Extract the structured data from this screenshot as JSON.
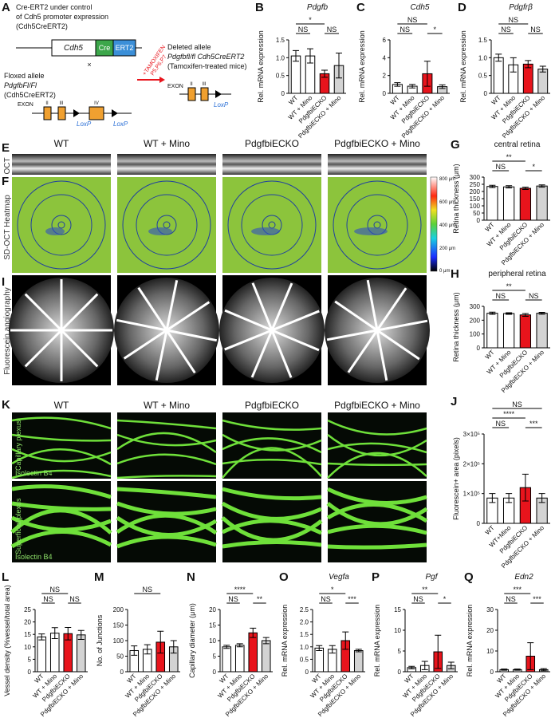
{
  "chart_data": [
    {
      "type": "bar",
      "panel": "B",
      "title": "Pdgfb",
      "y_label": "Rel. mRNA expression",
      "categories": [
        "WT",
        "WT + Mino",
        "PdgfbiECKO",
        "PdgfbiECKO + Mino"
      ],
      "values": [
        1.05,
        1.05,
        0.55,
        0.78
      ],
      "errors": [
        0.15,
        0.2,
        0.1,
        0.35
      ],
      "colors": [
        "#ffffff",
        "#ffffff",
        "#e8141c",
        "#d3d3d3"
      ],
      "ylim": [
        0,
        1.5
      ],
      "yticks": [
        0,
        0.5,
        {
          "value": 1,
          "label": "1.0"
        },
        1.5
      ],
      "comparisons": [
        {
          "label": "NS",
          "groups": [
            "WT",
            "WT + Mino"
          ]
        },
        {
          "label": "NS",
          "groups": [
            "PdgfbiECKO",
            "PdgfbiECKO + Mino"
          ]
        },
        {
          "label": "*",
          "groups": [
            "WT",
            "PdgfbiECKO"
          ]
        }
      ]
    },
    {
      "type": "bar",
      "panel": "C",
      "title": "Cdh5",
      "y_label": "Rel. mRNA expression",
      "categories": [
        "WT",
        "WT + Mino",
        "PdgfbiECKO",
        "PdgfbiECKO + Mino"
      ],
      "values": [
        1.0,
        0.8,
        2.2,
        0.75
      ],
      "errors": [
        0.2,
        0.2,
        1.4,
        0.2
      ],
      "colors": [
        "#ffffff",
        "#ffffff",
        "#e8141c",
        "#d3d3d3"
      ],
      "ylim": [
        0,
        6
      ],
      "yticks": [
        0,
        2,
        4,
        6
      ],
      "comparisons": [
        {
          "label": "NS",
          "groups": [
            "WT",
            "WT + Mino"
          ]
        },
        {
          "label": "*",
          "groups": [
            "PdgfbiECKO",
            "PdgfbiECKO + Mino"
          ]
        },
        {
          "label": "NS",
          "groups": [
            "WT",
            "PdgfbiECKO"
          ]
        }
      ]
    },
    {
      "type": "bar",
      "panel": "D",
      "title": "Pdgfrβ",
      "y_label": "Rel. mRNA expression",
      "categories": [
        "WT",
        "WT + Mino",
        "PdgfbiECKO",
        "PdgfbiECKO + Mino"
      ],
      "values": [
        1.0,
        0.8,
        0.82,
        0.68
      ],
      "errors": [
        0.1,
        0.2,
        0.1,
        0.08
      ],
      "colors": [
        "#ffffff",
        "#ffffff",
        "#e8141c",
        "#d3d3d3"
      ],
      "ylim": [
        0,
        1.5
      ],
      "yticks": [
        0,
        0.5,
        {
          "value": 1,
          "label": "1.0"
        },
        1.5
      ],
      "comparisons": [
        {
          "label": "NS",
          "groups": [
            "WT",
            "WT + Mino"
          ]
        },
        {
          "label": "NS",
          "groups": [
            "PdgfbiECKO",
            "PdgfbiECKO + Mino"
          ]
        },
        {
          "label": "NS",
          "groups": [
            "WT",
            "PdgfbiECKO"
          ]
        }
      ]
    },
    {
      "type": "bar",
      "panel": "G",
      "title": "central retina",
      "y_label": "Retina thickness (μm)",
      "categories": [
        "WT",
        "WT + Mino",
        "PdgfbiECKO",
        "PdgfbiECKO + Mino"
      ],
      "values": [
        235,
        232,
        222,
        238
      ],
      "errors": [
        8,
        8,
        8,
        8
      ],
      "colors": [
        "#ffffff",
        "#ffffff",
        "#e8141c",
        "#d3d3d3"
      ],
      "ylim": [
        0,
        300
      ],
      "yticks": [
        0,
        50,
        100,
        150,
        200,
        250,
        300
      ],
      "comparisons": [
        {
          "label": "NS",
          "groups": [
            "WT",
            "WT + Mino"
          ]
        },
        {
          "label": "*",
          "groups": [
            "PdgfbiECKO",
            "PdgfbiECKO + Mino"
          ]
        },
        {
          "label": "**",
          "groups": [
            "WT",
            "PdgfbiECKO"
          ]
        }
      ]
    },
    {
      "type": "bar",
      "panel": "H",
      "title": "peripheral retina",
      "y_label": "Retina thickness (μm)",
      "categories": [
        "WT",
        "WT + Mino",
        "PdgfbiECKO",
        "PdgfbiECKO + Mino"
      ],
      "values": [
        250,
        248,
        238,
        250
      ],
      "errors": [
        8,
        6,
        10,
        7
      ],
      "colors": [
        "#ffffff",
        "#ffffff",
        "#e8141c",
        "#d3d3d3"
      ],
      "ylim": [
        0,
        300
      ],
      "yticks": [
        0,
        100,
        200,
        300
      ],
      "comparisons": [
        {
          "label": "NS",
          "groups": [
            "WT",
            "WT + Mino"
          ]
        },
        {
          "label": "NS",
          "groups": [
            "PdgfbiECKO",
            "PdgfbiECKO + Mino"
          ]
        },
        {
          "label": "**",
          "groups": [
            "WT",
            "PdgfbiECKO"
          ]
        }
      ]
    },
    {
      "type": "bar",
      "panel": "J",
      "title": null,
      "y_label": "Fluorescein+ area (pixels)",
      "categories": [
        "WT",
        "WT+Mino",
        "PdgfbiECKO",
        "PdgfbiECKO + Mino"
      ],
      "values": [
        85000,
        85000,
        120000,
        85000
      ],
      "errors": [
        15000,
        15000,
        45000,
        15000
      ],
      "colors": [
        "#ffffff",
        "#ffffff",
        "#e8141c",
        "#d3d3d3"
      ],
      "ylim": [
        0,
        300000
      ],
      "yticks": [
        0,
        {
          "value": 100000,
          "label": "1×10⁵"
        },
        {
          "value": 200000,
          "label": "2×10⁵"
        },
        {
          "value": 300000,
          "label": "3×10⁵"
        }
      ],
      "comparisons": [
        {
          "label": "NS",
          "groups": [
            "WT",
            "WT+Mino"
          ]
        },
        {
          "label": "***",
          "groups": [
            "PdgfbiECKO",
            "PdgfbiECKO + Mino"
          ]
        },
        {
          "label": "****",
          "groups": [
            "WT",
            "PdgfbiECKO"
          ]
        },
        {
          "label": "NS",
          "groups": [
            "WT",
            "PdgfbiECKO + Mino"
          ]
        }
      ]
    },
    {
      "type": "bar",
      "panel": "L",
      "title": null,
      "y_label": "Vessel density (%vessel/total area)",
      "categories": [
        "WT",
        "WT + Mino",
        "PdgfbiECKO",
        "PdgfbiECKO + Mino"
      ],
      "values": [
        14,
        15.5,
        15.3,
        14.8
      ],
      "errors": [
        1.2,
        2.2,
        2.5,
        1.8
      ],
      "colors": [
        "#ffffff",
        "#ffffff",
        "#e8141c",
        "#d3d3d3"
      ],
      "ylim": [
        0,
        25
      ],
      "yticks": [
        0,
        5,
        10,
        15,
        20,
        25
      ],
      "comparisons": [
        {
          "label": "NS",
          "groups": [
            "WT",
            "WT + Mino"
          ]
        },
        {
          "label": "NS",
          "groups": [
            "PdgfbiECKO",
            "PdgfbiECKO + Mino"
          ]
        },
        {
          "label": "NS",
          "groups": [
            "WT",
            "PdgfbiECKO"
          ]
        }
      ]
    },
    {
      "type": "bar",
      "panel": "M",
      "title": null,
      "y_label": "No. of Junctions",
      "categories": [
        "WT",
        "WT + Mino",
        "PdgfbiECKO",
        "PdgfbiECKO + Mino"
      ],
      "values": [
        68,
        72,
        95,
        80
      ],
      "errors": [
        15,
        15,
        35,
        20
      ],
      "colors": [
        "#ffffff",
        "#ffffff",
        "#e8141c",
        "#d3d3d3"
      ],
      "ylim": [
        0,
        200
      ],
      "yticks": [
        0,
        50,
        100,
        150,
        200
      ],
      "comparisons": [
        {
          "label": "NS",
          "groups": [
            "WT",
            "PdgfbiECKO"
          ]
        }
      ]
    },
    {
      "type": "bar",
      "panel": "N",
      "title": null,
      "y_label": "Capillary diameter (μm)",
      "categories": [
        "WT",
        "WT + Mino",
        "PdgfbiECKO",
        "PdgfbiECKO + Mino"
      ],
      "values": [
        8,
        8.5,
        12.5,
        10
      ],
      "errors": [
        0.5,
        0.5,
        1.5,
        1.0
      ],
      "colors": [
        "#ffffff",
        "#ffffff",
        "#e8141c",
        "#d3d3d3"
      ],
      "ylim": [
        0,
        20
      ],
      "yticks": [
        0,
        5,
        10,
        15,
        20
      ],
      "comparisons": [
        {
          "label": "NS",
          "groups": [
            "WT",
            "WT + Mino"
          ]
        },
        {
          "label": "**",
          "groups": [
            "PdgfbiECKO",
            "PdgfbiECKO + Mino"
          ]
        },
        {
          "label": "****",
          "groups": [
            "WT",
            "PdgfbiECKO"
          ]
        }
      ]
    },
    {
      "type": "bar",
      "panel": "O",
      "title": "Vegfa",
      "y_label": "Rel. mRNA expression",
      "categories": [
        "WT",
        "WT + Mino",
        "PdgfbiECKO",
        "PdgfbiECKO + Mino"
      ],
      "values": [
        0.95,
        0.9,
        1.25,
        0.85
      ],
      "errors": [
        0.1,
        0.15,
        0.35,
        0.05
      ],
      "colors": [
        "#ffffff",
        "#ffffff",
        "#e8141c",
        "#d3d3d3"
      ],
      "ylim": [
        0,
        2.5
      ],
      "yticks": [
        0,
        0.5,
        {
          "value": 1,
          "label": "1.0"
        },
        1.5,
        {
          "value": 2,
          "label": "2.0"
        },
        2.5
      ],
      "comparisons": [
        {
          "label": "NS",
          "groups": [
            "WT",
            "WT + Mino"
          ]
        },
        {
          "label": "***",
          "groups": [
            "PdgfbiECKO",
            "PdgfbiECKO + Mino"
          ]
        },
        {
          "label": "*",
          "groups": [
            "WT",
            "PdgfbiECKO"
          ]
        }
      ]
    },
    {
      "type": "bar",
      "panel": "P",
      "title": "Pgf",
      "y_label": "Rel. mRNA expression",
      "categories": [
        "WT",
        "WT + Mino",
        "PdgfbiECKO",
        "PdgfbiECKO + Mino"
      ],
      "values": [
        1,
        1.5,
        4.8,
        1.5
      ],
      "errors": [
        0.3,
        1.0,
        4.0,
        0.8
      ],
      "colors": [
        "#ffffff",
        "#ffffff",
        "#e8141c",
        "#d3d3d3"
      ],
      "ylim": [
        0,
        15
      ],
      "yticks": [
        0,
        5,
        10,
        15
      ],
      "comparisons": [
        {
          "label": "NS",
          "groups": [
            "WT",
            "WT + Mino"
          ]
        },
        {
          "label": "*",
          "groups": [
            "PdgfbiECKO",
            "PdgfbiECKO + Mino"
          ]
        },
        {
          "label": "**",
          "groups": [
            "WT",
            "PdgfbiECKO"
          ]
        }
      ]
    },
    {
      "type": "bar",
      "panel": "Q",
      "title": "Edn2",
      "y_label": "Rel. mRNA expression",
      "categories": [
        "WT",
        "WT + Mino",
        "PdgfbiECKO",
        "PdgfbiECKO + Mino"
      ],
      "values": [
        1,
        1,
        7.5,
        1
      ],
      "errors": [
        0.3,
        0.3,
        6.5,
        0.5
      ],
      "colors": [
        "#ffffff",
        "#ffffff",
        "#e8141c",
        "#d3d3d3"
      ],
      "ylim": [
        0,
        30
      ],
      "yticks": [
        0,
        10,
        20,
        30
      ],
      "comparisons": [
        {
          "label": "NS",
          "groups": [
            "WT",
            "WT + Mino"
          ]
        },
        {
          "label": "***",
          "groups": [
            "PdgfbiECKO",
            "PdgfbiECKO + Mino"
          ]
        },
        {
          "label": "***",
          "groups": [
            "WT",
            "PdgfbiECKO"
          ]
        }
      ]
    }
  ],
  "panel_A": {
    "label": "A",
    "cre_title": [
      "Cre-ERT2 under control",
      "of Cdh5 promoter expression",
      "(Cdh5CreERT2)"
    ],
    "construct": [
      "Cdh5",
      "Cre",
      "ERT2"
    ],
    "cross": "×",
    "floxed": [
      "Floxed allele",
      "PdgfbFl/Fl",
      "(Cdh5CreERT2)"
    ],
    "exon_label": "EXON",
    "exons_floxed": [
      "II",
      "III",
      "IV"
    ],
    "loxp": "LoxP",
    "treatment": [
      "+TAMOXIFEN",
      "P5,P6,P7"
    ],
    "deleted": [
      "Deleted allele",
      "Pdgfbfl/fl Cdh5CreERT2",
      "(Tamoxifen-treated mice)"
    ],
    "exons_deleted": [
      "II",
      "III"
    ]
  },
  "images": {
    "column_labels": [
      "WT",
      "WT + Mino",
      "PdgfbiECKO",
      "PdgfbiECKO + Mino"
    ],
    "E": {
      "label": "E",
      "row": "OCT"
    },
    "F": {
      "label": "F",
      "row": "SD-OCT Heatmap",
      "scale": [
        "800 μm",
        "600 μm",
        "400 μm",
        "200 μm",
        "0 μm"
      ]
    },
    "I": {
      "label": "I",
      "row": "Fluorescein angiography"
    },
    "K": {
      "label": "K",
      "rows": [
        "Capillary plexus",
        "Superficial plexus"
      ],
      "stain": "Isolectin B4"
    }
  }
}
